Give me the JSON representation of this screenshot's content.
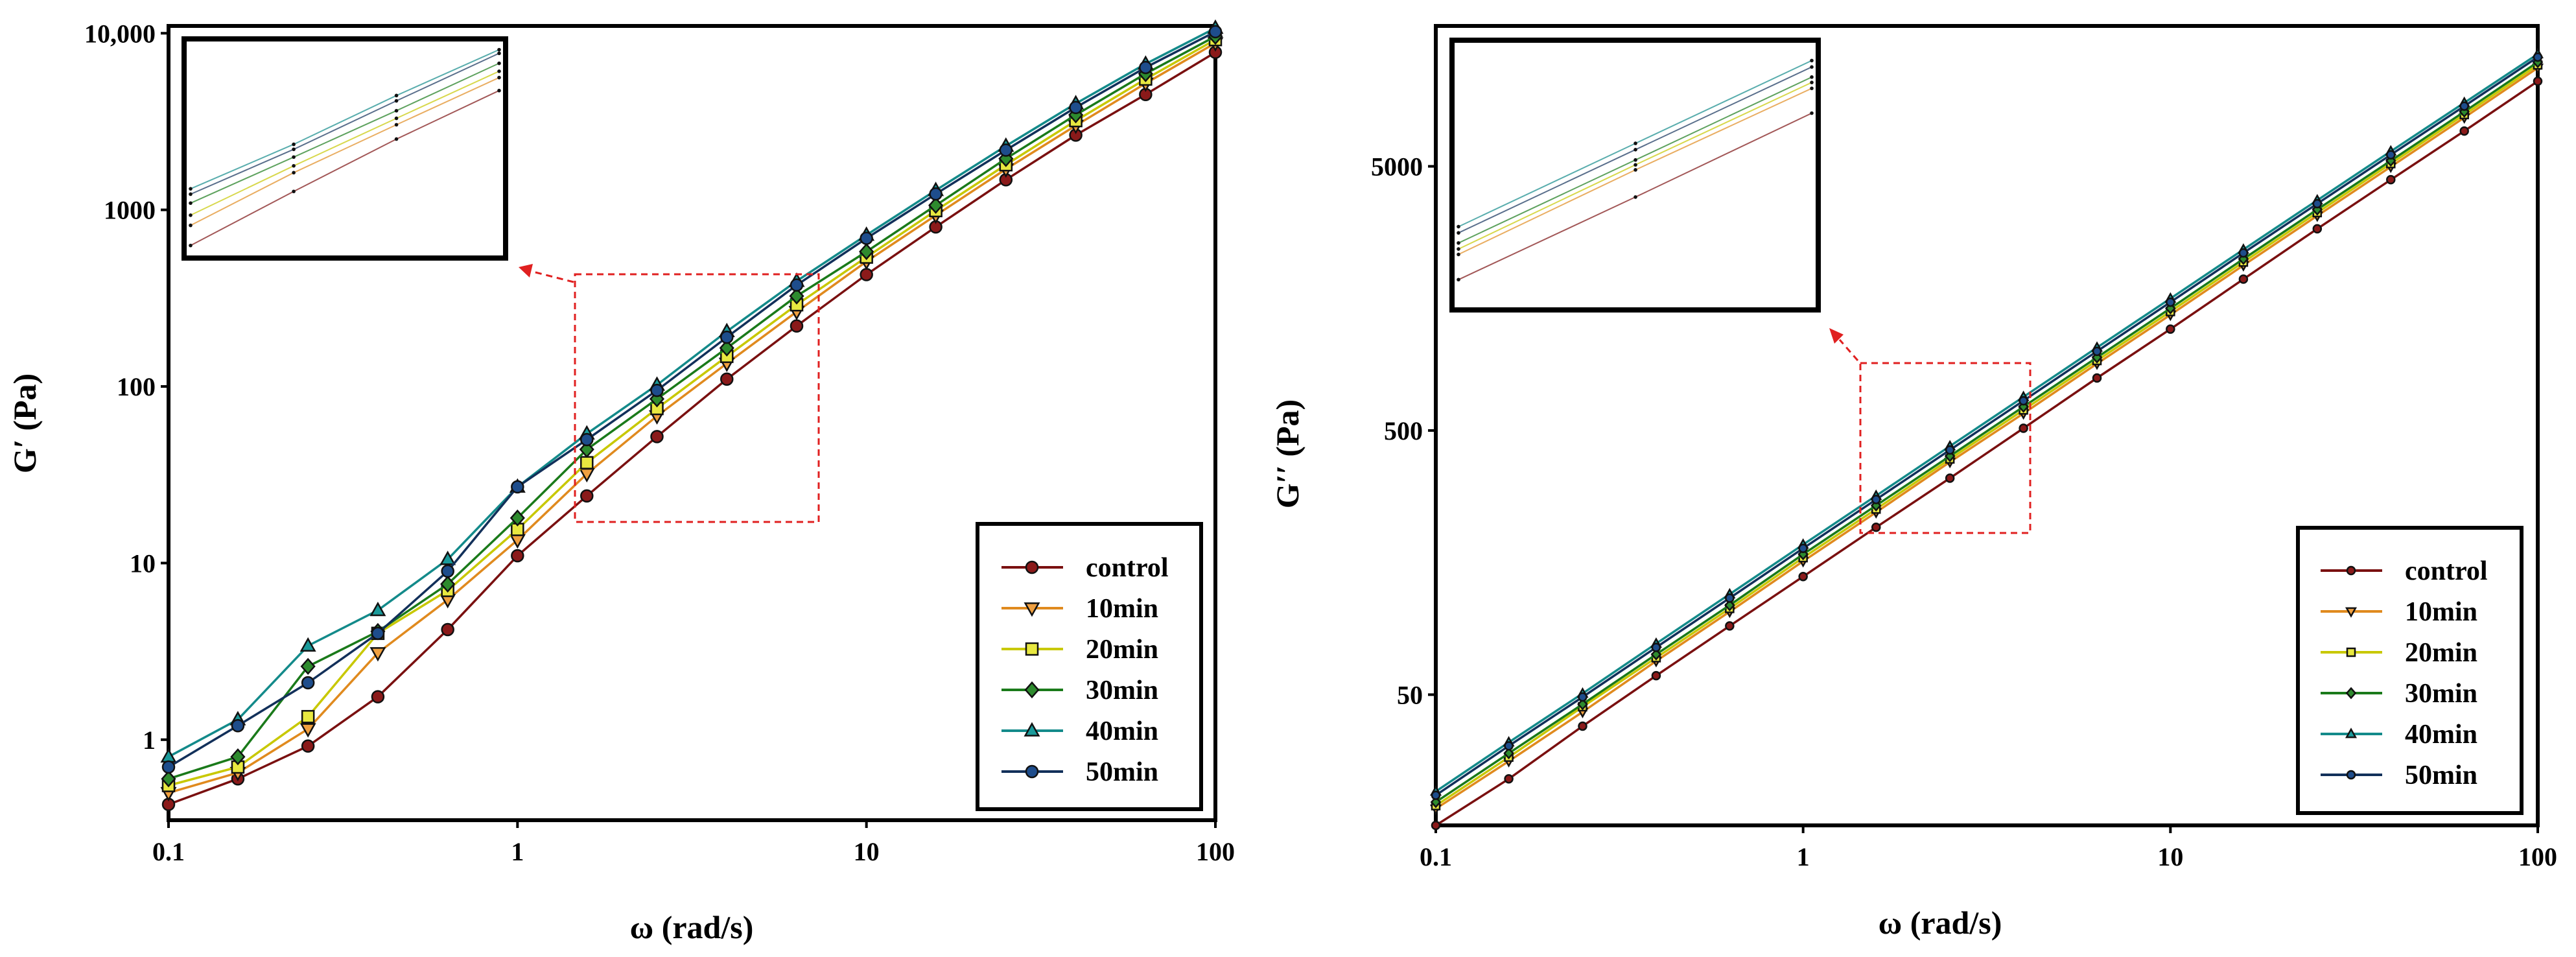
{
  "chart_data": [
    {
      "type": "line",
      "scale": "log-log",
      "xlabel": "ω (rad/s)",
      "ylabel": "G′ (Pa)",
      "xlim": [
        0.1,
        100
      ],
      "ylim": [
        0.35,
        11000
      ],
      "x_ticks": [
        {
          "value": 0.1,
          "label": "0.1"
        },
        {
          "value": 1,
          "label": "1"
        },
        {
          "value": 10,
          "label": "10"
        },
        {
          "value": 100,
          "label": "100"
        }
      ],
      "y_ticks": [
        {
          "value": 1,
          "label": "1"
        },
        {
          "value": 10,
          "label": "10"
        },
        {
          "value": 100,
          "label": "100"
        },
        {
          "value": 1000,
          "label": "1000"
        },
        {
          "value": 10000,
          "label": "10,000"
        }
      ],
      "x": [
        0.1,
        0.158,
        0.251,
        0.398,
        0.631,
        1,
        1.58,
        2.51,
        3.98,
        6.31,
        10,
        15.8,
        25.1,
        39.8,
        63.1,
        100
      ],
      "series": [
        {
          "name": "control",
          "color": "#7a1010",
          "marker": "circle",
          "fill": "#8b1a1a",
          "values": [
            0.43,
            0.6,
            0.92,
            1.75,
            4.2,
            11,
            24,
            52,
            110,
            220,
            430,
            800,
            1480,
            2650,
            4500,
            7800
          ]
        },
        {
          "name": "10min",
          "color": "#e08a1e",
          "marker": "triangle-down",
          "fill": "#f0a040",
          "values": [
            0.5,
            0.65,
            1.15,
            3.1,
            6.2,
            13.5,
            32,
            68,
            135,
            265,
            510,
            930,
            1700,
            3000,
            5200,
            8800
          ]
        },
        {
          "name": "20min",
          "color": "#c8c800",
          "marker": "square",
          "fill": "#e8e840",
          "values": [
            0.55,
            0.7,
            1.35,
            4.0,
            7.0,
            15.5,
            37,
            75,
            148,
            290,
            540,
            990,
            1800,
            3200,
            5500,
            9200
          ]
        },
        {
          "name": "30min",
          "color": "#1a7a1a",
          "marker": "diamond",
          "fill": "#2e8b2e",
          "values": [
            0.6,
            0.8,
            2.6,
            4.1,
            7.6,
            18,
            44,
            85,
            165,
            325,
            580,
            1060,
            1950,
            3450,
            5900,
            9600
          ]
        },
        {
          "name": "40min",
          "color": "#138a8a",
          "marker": "triangle-up",
          "fill": "#1a9a9a",
          "values": [
            0.8,
            1.3,
            3.4,
            5.4,
            10.5,
            27,
            54,
            102,
            205,
            395,
            720,
            1290,
            2300,
            4000,
            6700,
            10700
          ]
        },
        {
          "name": "50min",
          "color": "#12305a",
          "marker": "circle",
          "fill": "#1e4d8c",
          "values": [
            0.7,
            1.2,
            2.1,
            4.0,
            9.0,
            27,
            50,
            95,
            190,
            375,
            690,
            1230,
            2180,
            3800,
            6400,
            10200
          ]
        }
      ]
    },
    {
      "type": "line",
      "scale": "log-log",
      "xlabel": "ω (rad/s)",
      "ylabel": "G′′ (Pa)",
      "xlim": [
        0.1,
        100
      ],
      "ylim": [
        16,
        17000
      ],
      "x_ticks": [
        {
          "value": 0.1,
          "label": "0.1"
        },
        {
          "value": 1,
          "label": "1"
        },
        {
          "value": 10,
          "label": "10"
        },
        {
          "value": 100,
          "label": "100"
        }
      ],
      "y_ticks": [
        {
          "value": 50,
          "label": "50"
        },
        {
          "value": 500,
          "label": "500"
        },
        {
          "value": 5000,
          "label": "5000"
        }
      ],
      "x": [
        0.1,
        0.158,
        0.251,
        0.398,
        0.631,
        1,
        1.58,
        2.51,
        3.98,
        6.31,
        10,
        15.8,
        25.1,
        39.8,
        63.1,
        100
      ],
      "series": [
        {
          "name": "control",
          "color": "#7a1010",
          "marker": "circle",
          "fill": "#8b1a1a",
          "values": [
            16,
            24,
            38,
            59,
            91,
            140,
            215,
            330,
            510,
            790,
            1210,
            1870,
            2900,
            4450,
            6800,
            10500
          ]
        },
        {
          "name": "10min",
          "color": "#e08a1e",
          "marker": "triangle-down",
          "fill": "#f0a040",
          "values": [
            18.5,
            28,
            43,
            67,
            103,
            160,
            245,
            380,
            580,
            895,
            1370,
            2110,
            3250,
            4980,
            7650,
            11800
          ]
        },
        {
          "name": "20min",
          "color": "#c8c800",
          "marker": "square",
          "fill": "#e8e840",
          "values": [
            19,
            29,
            45,
            69,
            106,
            165,
            252,
            390,
            598,
            920,
            1410,
            2170,
            3340,
            5120,
            7850,
            12100
          ]
        },
        {
          "name": "30min",
          "color": "#1a7a1a",
          "marker": "diamond",
          "fill": "#2e8b2e",
          "values": [
            19.6,
            30,
            46,
            71,
            109,
            170,
            260,
            400,
            615,
            945,
            1450,
            2230,
            3430,
            5250,
            8050,
            12400
          ]
        },
        {
          "name": "40min",
          "color": "#138a8a",
          "marker": "triangle-up",
          "fill": "#1a9a9a",
          "values": [
            21.5,
            33,
            50.5,
            78,
            120,
            185,
            283,
            436,
            670,
            1030,
            1580,
            2420,
            3720,
            5700,
            8700,
            13300
          ]
        },
        {
          "name": "50min",
          "color": "#12305a",
          "marker": "circle",
          "fill": "#1e4d8c",
          "values": [
            20.8,
            32,
            49,
            75.5,
            116,
            179,
            274,
            422,
            648,
            997,
            1530,
            2350,
            3610,
            5530,
            8450,
            12950
          ]
        }
      ]
    }
  ]
}
